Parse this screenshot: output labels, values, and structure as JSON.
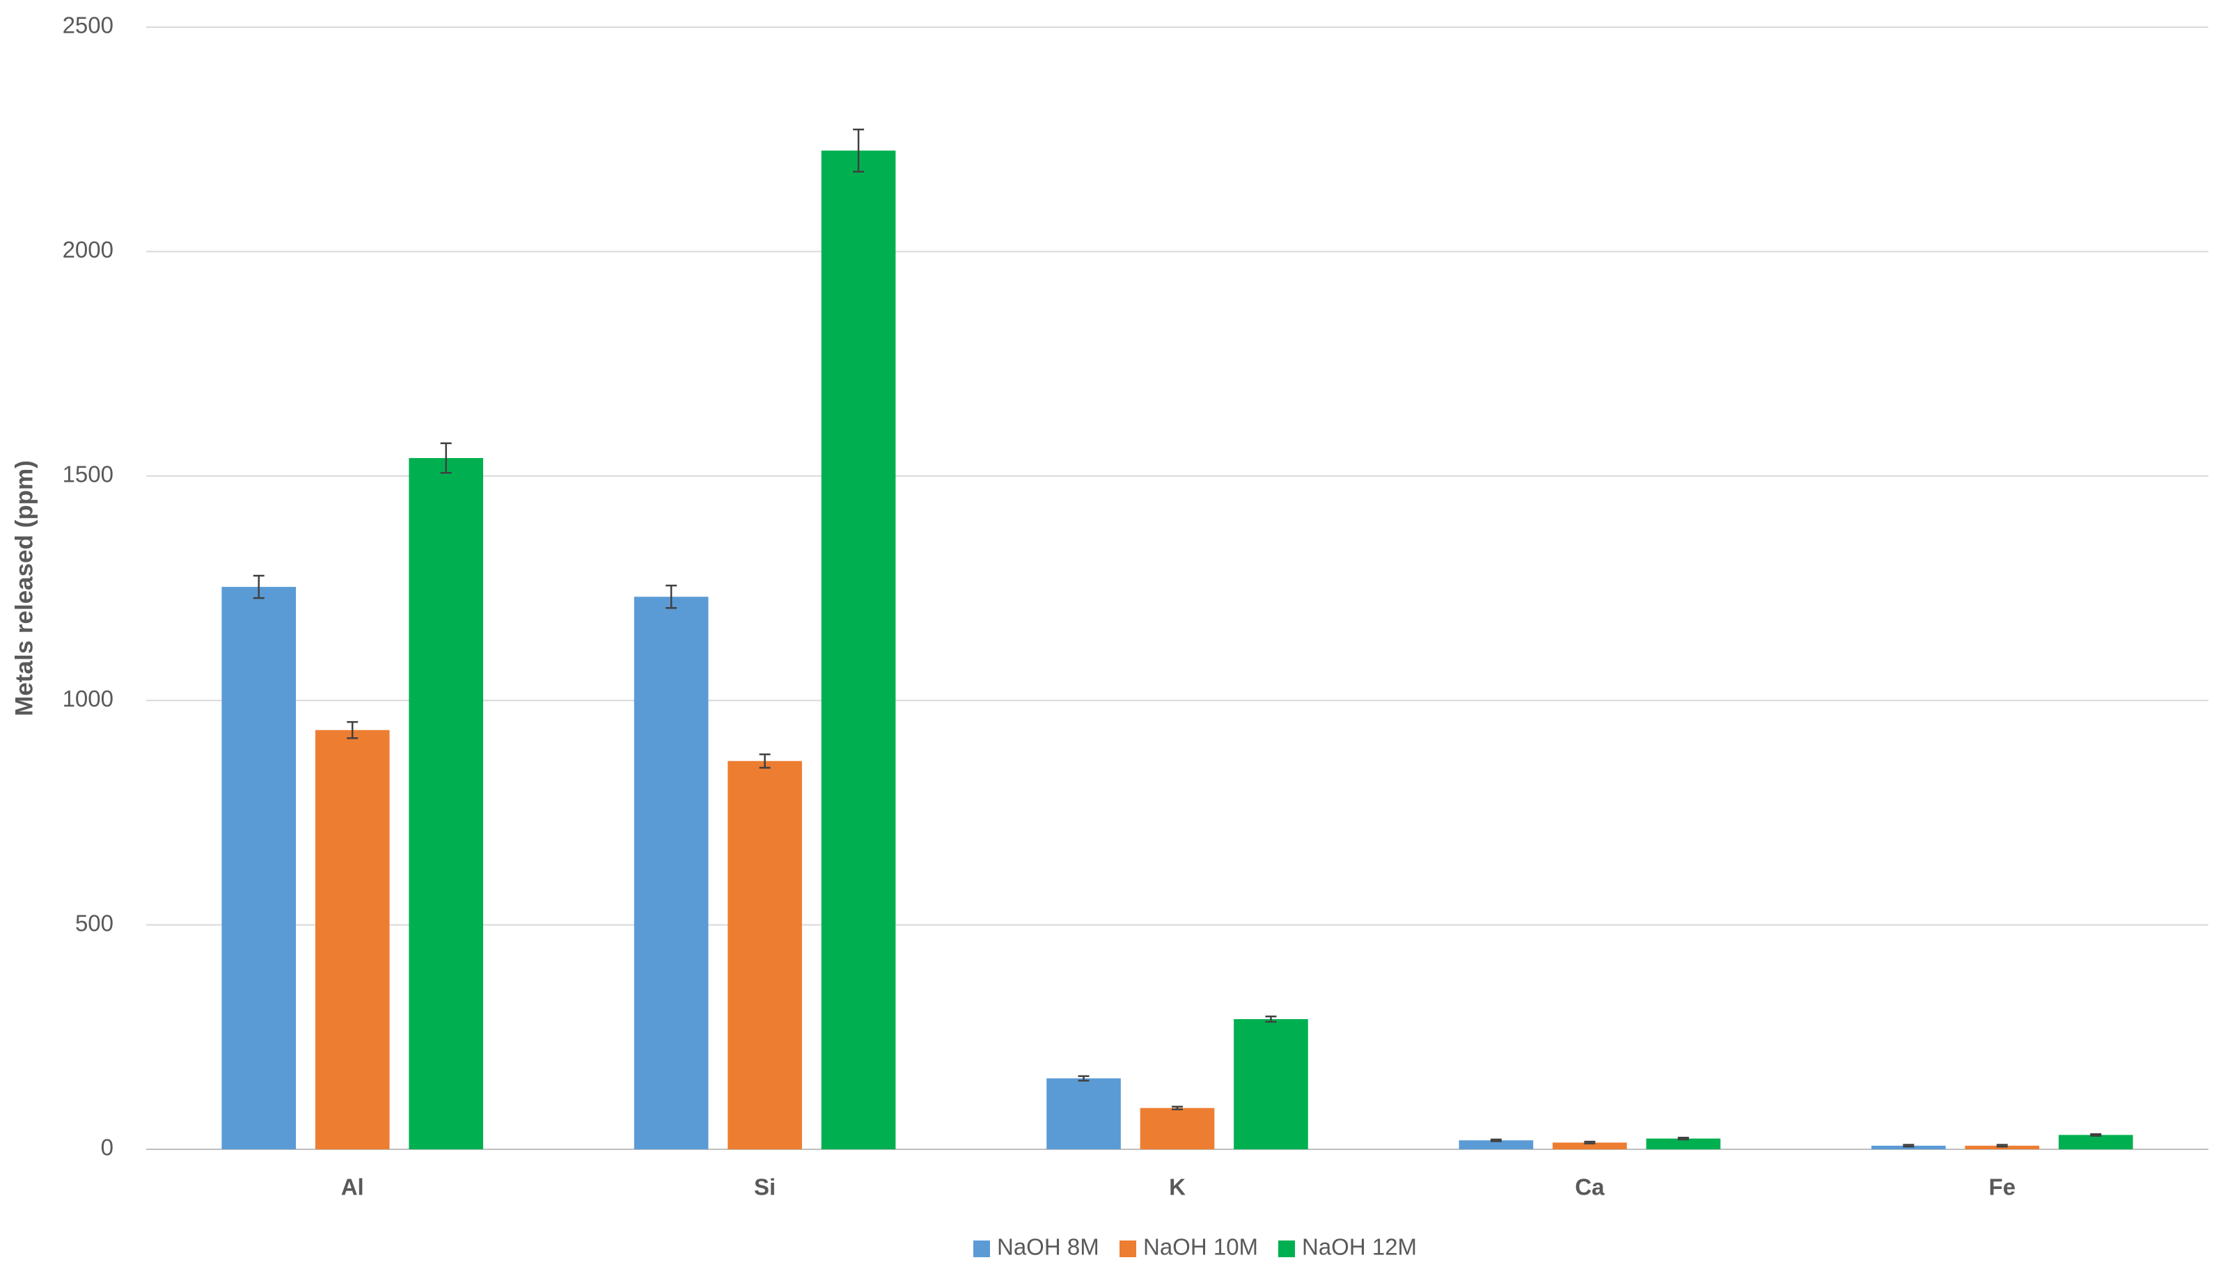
{
  "chart_data": {
    "type": "bar",
    "y_label": "Metals released (ppm)",
    "categories": [
      "Al",
      "Si",
      "K",
      "Ca",
      "Fe"
    ],
    "series": [
      {
        "name": "NaOH 8M",
        "color": "#5b9bd5",
        "values": [
          1253,
          1231,
          158,
          20,
          8
        ],
        "errors": [
          25,
          25,
          5,
          2,
          2
        ]
      },
      {
        "name": "NaOH 10M",
        "color": "#ed7d31",
        "values": [
          934,
          865,
          92,
          15,
          8
        ],
        "errors": [
          18,
          15,
          3,
          2,
          2
        ]
      },
      {
        "name": "NaOH 12M",
        "color": "#00b050",
        "values": [
          1540,
          2225,
          290,
          24,
          32
        ],
        "errors": [
          33,
          47,
          6,
          2,
          2
        ]
      }
    ],
    "ylim": [
      0,
      2500
    ],
    "yticks": [
      0,
      500,
      1000,
      1500,
      2000,
      2500
    ],
    "grid": true,
    "legend": "bottom"
  }
}
